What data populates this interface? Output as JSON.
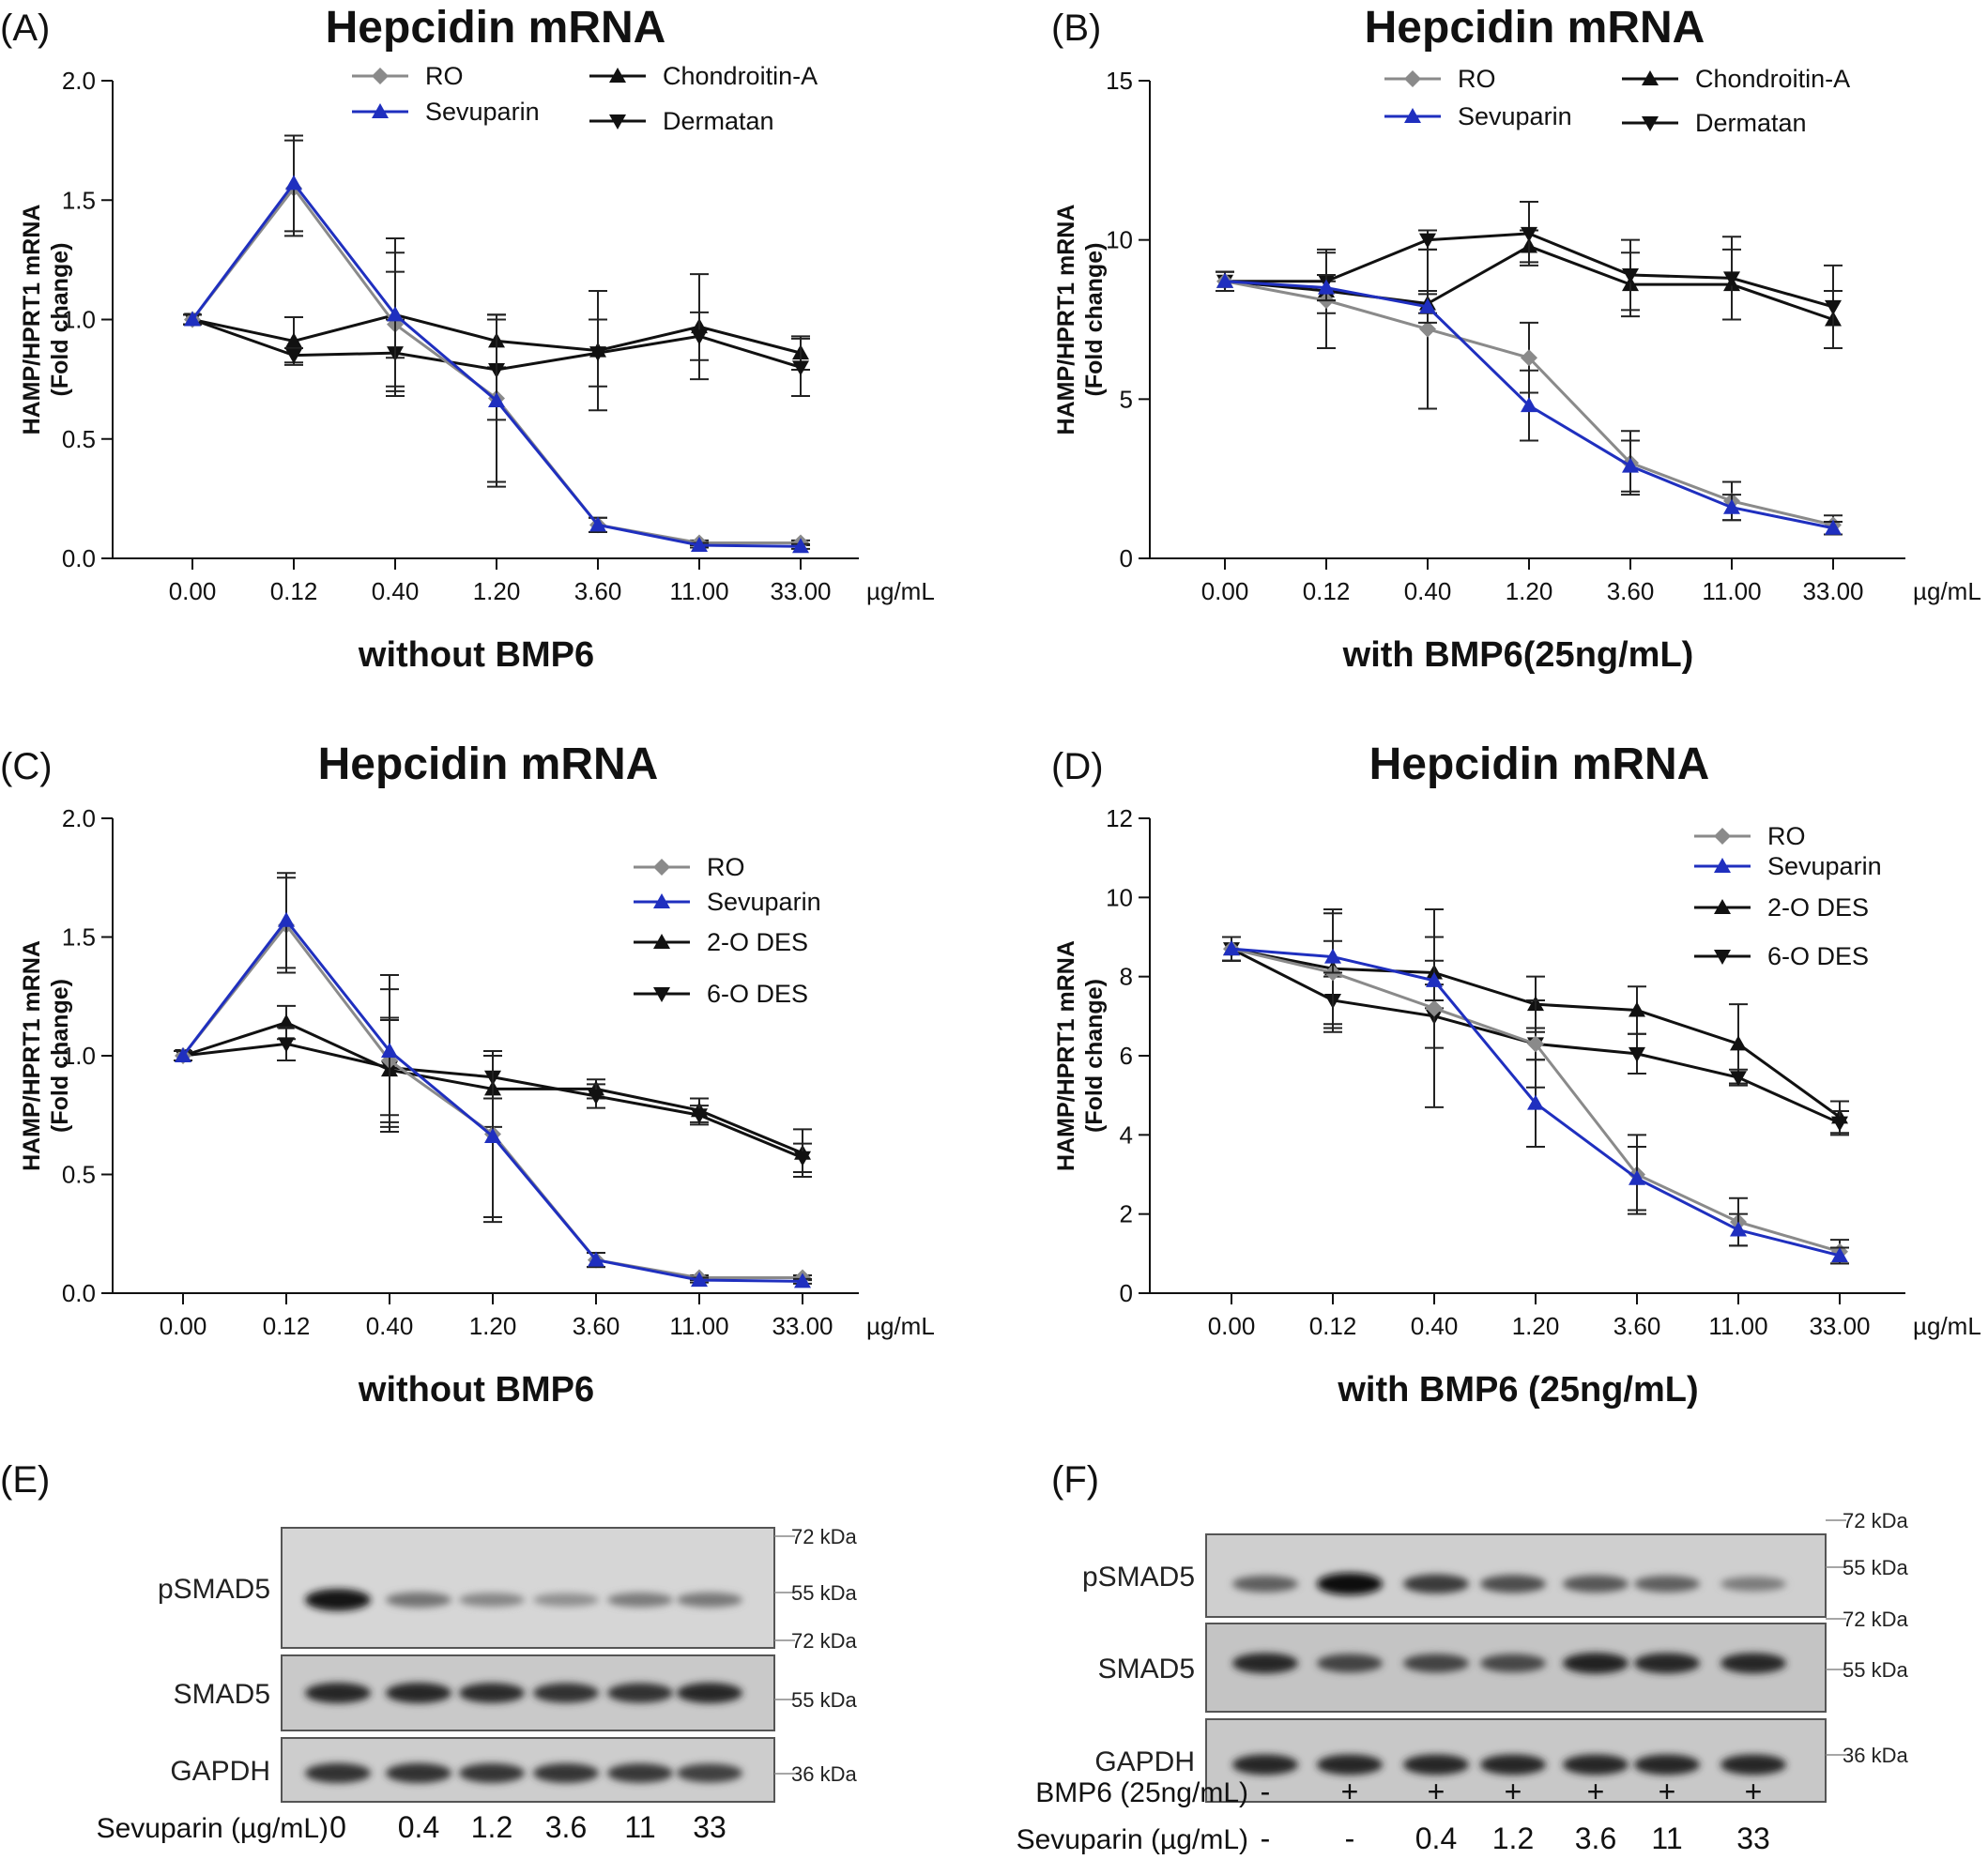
{
  "chart_data": [
    {
      "panel": "(A)",
      "type": "line",
      "title": "Hepcidin mRNA",
      "xlabel": "without BMP6",
      "x_unit": "µg/mL",
      "ylabel": [
        "HAMP/HPRT1 mRNA",
        "(Fold change)"
      ],
      "categories": [
        "0.00",
        "0.12",
        "0.40",
        "1.20",
        "3.60",
        "11.00",
        "33.00"
      ],
      "yticks": [
        "0.0",
        "0.5",
        "1.0",
        "1.5",
        "2.0"
      ],
      "ylim": [
        0,
        2
      ],
      "legend": "top",
      "series": [
        {
          "name": "RO",
          "color": "#8a8a8a",
          "marker": "diamond",
          "values": [
            1.0,
            1.55,
            0.98,
            0.67,
            0.14,
            0.065,
            0.065
          ],
          "err": [
            0.02,
            0.2,
            0.3,
            0.35,
            0.03,
            0.01,
            0.01
          ]
        },
        {
          "name": "Sevuparin",
          "color": "#1f2fbf",
          "marker": "triangle-up",
          "values": [
            1.0,
            1.57,
            1.02,
            0.66,
            0.14,
            0.055,
            0.05
          ],
          "err": [
            0.02,
            0.2,
            0.32,
            0.36,
            0.03,
            0.01,
            0.01
          ]
        },
        {
          "name": "Chondroitin-A",
          "color": "#111111",
          "marker": "triangle-up",
          "values": [
            1.0,
            0.91,
            1.02,
            0.91,
            0.87,
            0.97,
            0.86
          ],
          "err": [
            0.02,
            0.1,
            0.18,
            0.11,
            0.25,
            0.22,
            0.07
          ]
        },
        {
          "name": "Dermatan",
          "color": "#111111",
          "marker": "triangle-down",
          "values": [
            1.0,
            0.85,
            0.86,
            0.79,
            0.86,
            0.93,
            0.8
          ],
          "err": [
            0.02,
            0.03,
            0.14,
            0.21,
            0.14,
            0.1,
            0.12
          ]
        }
      ]
    },
    {
      "panel": "(B)",
      "type": "line",
      "title": "Hepcidin mRNA",
      "xlabel": "with BMP6(25ng/mL)",
      "x_unit": "µg/mL",
      "ylabel": [
        "HAMP/HPRT1 mRNA",
        "(Fold change)"
      ],
      "categories": [
        "0.00",
        "0.12",
        "0.40",
        "1.20",
        "3.60",
        "11.00",
        "33.00"
      ],
      "yticks": [
        "0",
        "5",
        "10",
        "15"
      ],
      "ylim": [
        0,
        15
      ],
      "legend": "top",
      "series": [
        {
          "name": "RO",
          "color": "#8a8a8a",
          "marker": "diamond",
          "values": [
            8.7,
            8.1,
            7.2,
            6.3,
            3.0,
            1.8,
            1.05
          ],
          "err": [
            0.3,
            1.5,
            2.5,
            1.1,
            1.0,
            0.6,
            0.3
          ]
        },
        {
          "name": "Sevuparin",
          "color": "#1f2fbf",
          "marker": "triangle-up",
          "values": [
            8.7,
            8.5,
            7.9,
            4.8,
            2.9,
            1.6,
            0.95
          ],
          "err": [
            0.3,
            0.4,
            0.5,
            1.1,
            0.8,
            0.4,
            0.2
          ]
        },
        {
          "name": "Chondroitin-A",
          "color": "#111111",
          "marker": "triangle-up",
          "values": [
            8.7,
            8.4,
            8.0,
            9.8,
            8.6,
            8.6,
            7.5
          ],
          "err": [
            0.3,
            0.3,
            0.3,
            0.5,
            1.0,
            1.1,
            0.9
          ]
        },
        {
          "name": "Dermatan",
          "color": "#111111",
          "marker": "triangle-down",
          "values": [
            8.7,
            8.7,
            10.0,
            10.2,
            8.9,
            8.8,
            7.9
          ],
          "err": [
            0.3,
            1.0,
            0.3,
            1.0,
            1.1,
            1.3,
            1.3
          ]
        }
      ]
    },
    {
      "panel": "(C)",
      "type": "line",
      "title": "Hepcidin mRNA",
      "xlabel": "without BMP6",
      "x_unit": "µg/mL",
      "ylabel": [
        "HAMP/HPRT1 mRNA",
        "(Fold change)"
      ],
      "categories": [
        "0.00",
        "0.12",
        "0.40",
        "1.20",
        "3.60",
        "11.00",
        "33.00"
      ],
      "yticks": [
        "0.0",
        "0.5",
        "1.0",
        "1.5",
        "2.0"
      ],
      "ylim": [
        0,
        2
      ],
      "legend": "right",
      "series": [
        {
          "name": "RO",
          "color": "#8a8a8a",
          "marker": "diamond",
          "values": [
            1.0,
            1.55,
            0.98,
            0.67,
            0.14,
            0.065,
            0.065
          ],
          "err": [
            0.02,
            0.2,
            0.3,
            0.35,
            0.03,
            0.01,
            0.01
          ]
        },
        {
          "name": "Sevuparin",
          "color": "#1f2fbf",
          "marker": "triangle-up",
          "values": [
            1.0,
            1.57,
            1.02,
            0.66,
            0.14,
            0.055,
            0.05
          ],
          "err": [
            0.02,
            0.2,
            0.32,
            0.36,
            0.03,
            0.01,
            0.01
          ]
        },
        {
          "name": "2-O DES",
          "color": "#111111",
          "marker": "triangle-up",
          "values": [
            1.0,
            1.14,
            0.94,
            0.86,
            0.86,
            0.77,
            0.59
          ],
          "err": [
            0.02,
            0.07,
            0.22,
            0.16,
            0.04,
            0.05,
            0.1
          ]
        },
        {
          "name": "6-O DES",
          "color": "#111111",
          "marker": "triangle-down",
          "values": [
            1.0,
            1.05,
            0.95,
            0.91,
            0.83,
            0.75,
            0.57
          ],
          "err": [
            0.02,
            0.07,
            0.2,
            0.09,
            0.05,
            0.04,
            0.06
          ]
        }
      ]
    },
    {
      "panel": "(D)",
      "type": "line",
      "title": "Hepcidin mRNA",
      "xlabel": "with BMP6 (25ng/mL)",
      "x_unit": "µg/mL",
      "ylabel": [
        "HAMP/HPRT1 mRNA",
        "(Fold change)"
      ],
      "categories": [
        "0.00",
        "0.12",
        "0.40",
        "1.20",
        "3.60",
        "11.00",
        "33.00"
      ],
      "yticks": [
        "0",
        "2",
        "4",
        "6",
        "8",
        "10",
        "12"
      ],
      "ylim": [
        0,
        12
      ],
      "legend": "top-right",
      "series": [
        {
          "name": "RO",
          "color": "#8a8a8a",
          "marker": "diamond",
          "values": [
            8.7,
            8.1,
            7.2,
            6.3,
            3.0,
            1.8,
            1.05
          ],
          "err": [
            0.3,
            1.5,
            2.5,
            1.1,
            1.0,
            0.6,
            0.3
          ]
        },
        {
          "name": "Sevuparin",
          "color": "#1f2fbf",
          "marker": "triangle-up",
          "values": [
            8.7,
            8.5,
            7.9,
            4.8,
            2.9,
            1.6,
            0.95
          ],
          "err": [
            0.3,
            0.4,
            0.5,
            1.1,
            0.8,
            0.4,
            0.2
          ]
        },
        {
          "name": "2-O DES",
          "color": "#111111",
          "marker": "triangle-up",
          "values": [
            8.7,
            8.2,
            8.1,
            7.3,
            7.15,
            6.3,
            4.45
          ],
          "err": [
            0.3,
            1.5,
            0.9,
            0.7,
            0.6,
            1.0,
            0.4
          ]
        },
        {
          "name": "6-O DES",
          "color": "#111111",
          "marker": "triangle-down",
          "values": [
            8.7,
            7.4,
            7.0,
            6.3,
            6.05,
            5.45,
            4.3
          ],
          "err": [
            0.3,
            0.6,
            0.8,
            0.4,
            0.5,
            0.2,
            0.3
          ]
        }
      ]
    }
  ],
  "blots": [
    {
      "panel": "(E)",
      "rows": [
        {
          "label": "pSMAD5",
          "markers": [
            "72 kDa",
            "55 kDa"
          ],
          "intensities": [
            0.95,
            0.45,
            0.35,
            0.3,
            0.4,
            0.42
          ],
          "bg": "#d6d6d6"
        },
        {
          "label": "SMAD5",
          "markers": [
            "72 kDa",
            "55 kDa"
          ],
          "intensities": [
            0.85,
            0.85,
            0.82,
            0.8,
            0.8,
            0.85
          ],
          "bg": "#c9c9c9"
        },
        {
          "label": "GAPDH",
          "markers": [
            "36 kDa"
          ],
          "intensities": [
            0.8,
            0.8,
            0.78,
            0.78,
            0.76,
            0.72
          ],
          "bg": "#cdcdcd"
        }
      ],
      "treatments": [
        {
          "label": "Sevuparin (µg/mL)",
          "values": [
            "0",
            "0.4",
            "1.2",
            "3.6",
            "11",
            "33"
          ]
        }
      ]
    },
    {
      "panel": "(F)",
      "rows": [
        {
          "label": "pSMAD5",
          "markers": [
            "72 kDa",
            "55 kDa"
          ],
          "intensities": [
            0.55,
            0.98,
            0.75,
            0.65,
            0.6,
            0.55,
            0.4
          ],
          "bg": "#cfcfcf"
        },
        {
          "label": "SMAD5",
          "markers": [
            "72 kDa",
            "55 kDa"
          ],
          "intensities": [
            0.85,
            0.7,
            0.7,
            0.68,
            0.88,
            0.85,
            0.85
          ],
          "bg": "#c4c4c4"
        },
        {
          "label": "GAPDH",
          "markers": [
            "36 kDa"
          ],
          "intensities": [
            0.85,
            0.85,
            0.85,
            0.85,
            0.85,
            0.85,
            0.85
          ],
          "bg": "#c8c8c8"
        }
      ],
      "treatments": [
        {
          "label": "BMP6 (25ng/mL)",
          "values": [
            "-",
            "+",
            "+",
            "+",
            "+",
            "+",
            "+"
          ]
        },
        {
          "label": "Sevuparin (µg/mL)",
          "values": [
            "-",
            "-",
            "0.4",
            "1.2",
            "3.6",
            "11",
            "33"
          ]
        }
      ]
    }
  ]
}
